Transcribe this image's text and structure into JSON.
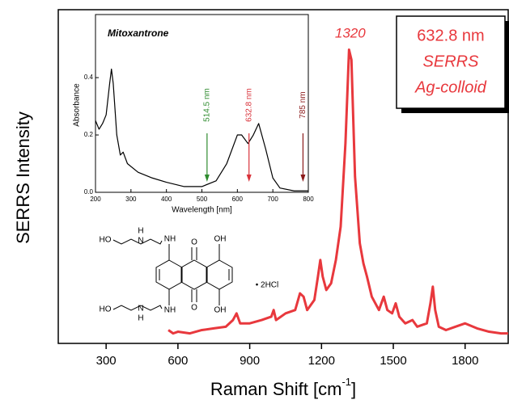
{
  "chart_data": [
    {
      "type": "line",
      "x_label": "Raman Shift [cm",
      "x_label_sup": "-1",
      "x_label_end": "]",
      "y_label": "SERRS Intensity",
      "xlim": [
        100,
        1980
      ],
      "ylim": [
        0,
        1
      ],
      "xticks": [
        300,
        600,
        900,
        1200,
        1500,
        1800
      ],
      "series": [
        {
          "color": "#e8383d",
          "x": [
            560,
            580,
            600,
            650,
            700,
            750,
            800,
            830,
            845,
            860,
            900,
            950,
            990,
            1000,
            1010,
            1050,
            1090,
            1110,
            1125,
            1140,
            1170,
            1185,
            1195,
            1205,
            1220,
            1240,
            1260,
            1280,
            1300,
            1315,
            1325,
            1340,
            1360,
            1375,
            1390,
            1410,
            1440,
            1460,
            1475,
            1495,
            1510,
            1525,
            1550,
            1580,
            1600,
            1640,
            1655,
            1665,
            1675,
            1690,
            1720,
            1760,
            1800,
            1850,
            1900,
            1950,
            1980
          ],
          "values": [
            0.04,
            0.03,
            0.035,
            0.03,
            0.04,
            0.045,
            0.05,
            0.07,
            0.09,
            0.06,
            0.06,
            0.07,
            0.08,
            0.1,
            0.07,
            0.09,
            0.1,
            0.15,
            0.14,
            0.1,
            0.13,
            0.2,
            0.25,
            0.2,
            0.16,
            0.18,
            0.25,
            0.35,
            0.6,
            0.88,
            0.85,
            0.5,
            0.3,
            0.24,
            0.2,
            0.14,
            0.1,
            0.14,
            0.1,
            0.09,
            0.12,
            0.08,
            0.06,
            0.07,
            0.05,
            0.06,
            0.12,
            0.17,
            0.1,
            0.05,
            0.04,
            0.05,
            0.06,
            0.045,
            0.035,
            0.03,
            0.03
          ]
        }
      ],
      "annotations": [
        {
          "x": 1320,
          "label": "1320"
        }
      ],
      "legend_text": [
        "632.8 nm",
        "SERRS",
        "Ag-colloid"
      ],
      "legend_color": "#e8383d"
    },
    {
      "type": "line",
      "title": "Mitoxantrone",
      "x_label": "Wavelength [nm]",
      "y_label": "Absorbance",
      "xlim": [
        200,
        800
      ],
      "ylim": [
        0,
        0.62
      ],
      "xticks": [
        200,
        300,
        400,
        500,
        600,
        700,
        800
      ],
      "yticks": [
        {
          "value": 0,
          "label": "0.0"
        },
        0.2,
        0.4
      ],
      "series": [
        {
          "color": "#000000",
          "x": [
            200,
            210,
            220,
            230,
            240,
            245,
            250,
            260,
            270,
            278,
            290,
            320,
            360,
            400,
            450,
            500,
            540,
            570,
            600,
            612,
            630,
            645,
            660,
            680,
            700,
            720,
            760,
            800
          ],
          "values": [
            0.25,
            0.22,
            0.24,
            0.27,
            0.38,
            0.43,
            0.38,
            0.2,
            0.13,
            0.14,
            0.1,
            0.07,
            0.05,
            0.035,
            0.02,
            0.02,
            0.04,
            0.1,
            0.2,
            0.2,
            0.17,
            0.2,
            0.24,
            0.15,
            0.05,
            0.015,
            0.005,
            0.005
          ]
        }
      ],
      "arrows": [
        {
          "x": 514.5,
          "label": "514.5 nm",
          "color": "#2e8b2e"
        },
        {
          "x": 632.8,
          "label": "632.8 nm",
          "color": "#d9323a"
        },
        {
          "x": 785,
          "label": "785 nm",
          "color": "#8b1a1a"
        }
      ]
    }
  ],
  "structure": {
    "labels": [
      "HO",
      "H",
      "N",
      "NH",
      "OH",
      "O",
      "O",
      "OH",
      "• 2HCl",
      "HO",
      "N",
      "H",
      "NH",
      "OH"
    ]
  }
}
